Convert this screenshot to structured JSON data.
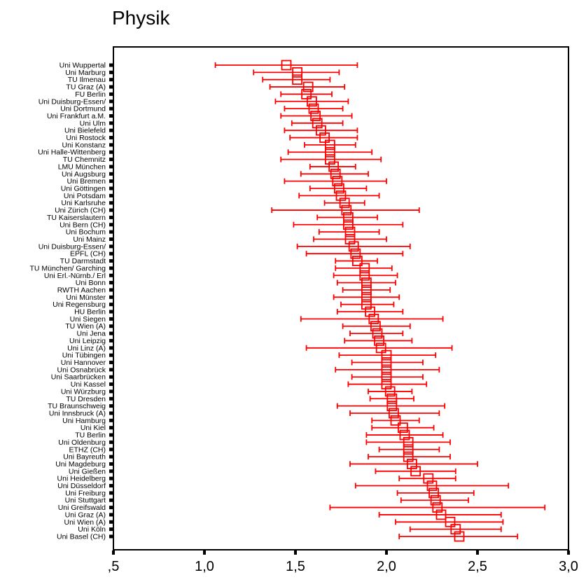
{
  "chart_data": {
    "type": "scatter",
    "title": "Physik",
    "xlabel": "",
    "ylabel": "",
    "xlim": [
      0.5,
      3.0
    ],
    "xticks": [
      ",5",
      "1,0",
      "1,5",
      "2,0",
      "2,5",
      "3,0"
    ],
    "xtick_values": [
      0.5,
      1.0,
      1.5,
      2.0,
      2.5,
      3.0
    ],
    "grid": false,
    "marker_color": "#ff0000",
    "points": [
      {
        "label": "Uni Wuppertal",
        "mean": 1.45,
        "low": 1.06,
        "high": 1.84
      },
      {
        "label": "Uni Marburg",
        "mean": 1.51,
        "low": 1.27,
        "high": 1.74
      },
      {
        "label": "TU Ilmenau",
        "mean": 1.51,
        "low": 1.32,
        "high": 1.69
      },
      {
        "label": "TU Graz (A)",
        "mean": 1.57,
        "low": 1.36,
        "high": 1.77
      },
      {
        "label": "FU Berlin",
        "mean": 1.56,
        "low": 1.42,
        "high": 1.7
      },
      {
        "label": "Uni Duisburg-Essen/",
        "mean": 1.59,
        "low": 1.39,
        "high": 1.79
      },
      {
        "label": "Uni Dortmund",
        "mean": 1.6,
        "low": 1.44,
        "high": 1.76
      },
      {
        "label": "Uni Frankfurt a.M.",
        "mean": 1.61,
        "low": 1.42,
        "high": 1.81
      },
      {
        "label": "Uni Ulm",
        "mean": 1.62,
        "low": 1.48,
        "high": 1.76
      },
      {
        "label": "Uni Bielefeld",
        "mean": 1.64,
        "low": 1.44,
        "high": 1.84
      },
      {
        "label": "Uni Rostock",
        "mean": 1.66,
        "low": 1.47,
        "high": 1.84
      },
      {
        "label": "Uni Konstanz",
        "mean": 1.69,
        "low": 1.55,
        "high": 1.83
      },
      {
        "label": "Uni Halle-Wittenberg",
        "mean": 1.69,
        "low": 1.46,
        "high": 1.92
      },
      {
        "label": "TU Chemnitz",
        "mean": 1.69,
        "low": 1.42,
        "high": 1.97
      },
      {
        "label": "LMU München",
        "mean": 1.71,
        "low": 1.58,
        "high": 1.83
      },
      {
        "label": "Uni Augsburg",
        "mean": 1.72,
        "low": 1.53,
        "high": 1.9
      },
      {
        "label": "Uni Bremen",
        "mean": 1.73,
        "low": 1.44,
        "high": 2.0
      },
      {
        "label": "Uni Göttingen",
        "mean": 1.74,
        "low": 1.58,
        "high": 1.89
      },
      {
        "label": "Uni Potsdam",
        "mean": 1.75,
        "low": 1.52,
        "high": 1.96
      },
      {
        "label": "Uni Karlsruhe",
        "mean": 1.77,
        "low": 1.66,
        "high": 1.88
      },
      {
        "label": "Uni Zürich (CH)",
        "mean": 1.78,
        "low": 1.37,
        "high": 2.18
      },
      {
        "label": "TU Kaiserslautern",
        "mean": 1.79,
        "low": 1.62,
        "high": 1.95
      },
      {
        "label": "Uni Bern (CH)",
        "mean": 1.79,
        "low": 1.49,
        "high": 2.09
      },
      {
        "label": "Uni Bochum",
        "mean": 1.8,
        "low": 1.63,
        "high": 1.96
      },
      {
        "label": "Uni Mainz",
        "mean": 1.8,
        "low": 1.6,
        "high": 2.0
      },
      {
        "label": "Uni Duisburg-Essen/",
        "mean": 1.82,
        "low": 1.51,
        "high": 2.13
      },
      {
        "label": "EPFL (CH)",
        "mean": 1.83,
        "low": 1.56,
        "high": 2.09
      },
      {
        "label": "TU Darmstadt",
        "mean": 1.84,
        "low": 1.72,
        "high": 1.95
      },
      {
        "label": "TU München/ Garching",
        "mean": 1.88,
        "low": 1.72,
        "high": 2.03
      },
      {
        "label": "Uni Erl.-Nürnb./ Erl",
        "mean": 1.88,
        "low": 1.71,
        "high": 2.06
      },
      {
        "label": "Uni Bonn",
        "mean": 1.89,
        "low": 1.73,
        "high": 2.05
      },
      {
        "label": "RWTH Aachen",
        "mean": 1.89,
        "low": 1.76,
        "high": 2.02
      },
      {
        "label": "Uni Münster",
        "mean": 1.89,
        "low": 1.71,
        "high": 2.07
      },
      {
        "label": "Uni Regensburg",
        "mean": 1.89,
        "low": 1.75,
        "high": 2.04
      },
      {
        "label": "HU Berlin",
        "mean": 1.91,
        "low": 1.73,
        "high": 2.09
      },
      {
        "label": "Uni Siegen",
        "mean": 1.93,
        "low": 1.53,
        "high": 2.31
      },
      {
        "label": "TU Wien (A)",
        "mean": 1.94,
        "low": 1.76,
        "high": 2.13
      },
      {
        "label": "Uni Jena",
        "mean": 1.95,
        "low": 1.8,
        "high": 2.09
      },
      {
        "label": "Uni Leipzig",
        "mean": 1.96,
        "low": 1.77,
        "high": 2.14
      },
      {
        "label": "Uni Linz (A)",
        "mean": 1.97,
        "low": 1.56,
        "high": 2.36
      },
      {
        "label": "Uni Tübingen",
        "mean": 2.0,
        "low": 1.74,
        "high": 2.27
      },
      {
        "label": "Uni Hannover",
        "mean": 2.0,
        "low": 1.81,
        "high": 2.2
      },
      {
        "label": "Uni Osnabrück",
        "mean": 2.0,
        "low": 1.72,
        "high": 2.29
      },
      {
        "label": "Uni Saarbrücken",
        "mean": 2.0,
        "low": 1.81,
        "high": 2.2
      },
      {
        "label": "Uni Kassel",
        "mean": 2.0,
        "low": 1.79,
        "high": 2.22
      },
      {
        "label": "Uni Würzburg",
        "mean": 2.02,
        "low": 1.9,
        "high": 2.14
      },
      {
        "label": "TU Dresden",
        "mean": 2.03,
        "low": 1.91,
        "high": 2.15
      },
      {
        "label": "TU Braunschweig",
        "mean": 2.03,
        "low": 1.73,
        "high": 2.32
      },
      {
        "label": "Uni Innsbruck (A)",
        "mean": 2.04,
        "low": 1.8,
        "high": 2.29
      },
      {
        "label": "Uni Hamburg",
        "mean": 2.05,
        "low": 1.92,
        "high": 2.18
      },
      {
        "label": "Uni Kiel",
        "mean": 2.09,
        "low": 1.92,
        "high": 2.26
      },
      {
        "label": "TU Berlin",
        "mean": 2.1,
        "low": 1.89,
        "high": 2.31
      },
      {
        "label": "Uni Oldenburg",
        "mean": 2.12,
        "low": 1.89,
        "high": 2.35
      },
      {
        "label": "ETHZ (CH)",
        "mean": 2.12,
        "low": 1.96,
        "high": 2.29
      },
      {
        "label": "Uni Bayreuth",
        "mean": 2.12,
        "low": 1.9,
        "high": 2.35
      },
      {
        "label": "Uni Magdeburg",
        "mean": 2.14,
        "low": 1.8,
        "high": 2.5
      },
      {
        "label": "Uni Gießen",
        "mean": 2.16,
        "low": 1.94,
        "high": 2.38
      },
      {
        "label": "Uni Heidelberg",
        "mean": 2.23,
        "low": 2.07,
        "high": 2.38
      },
      {
        "label": "Uni Düsseldorf",
        "mean": 2.25,
        "low": 1.83,
        "high": 2.67
      },
      {
        "label": "Uni Freiburg",
        "mean": 2.26,
        "low": 2.06,
        "high": 2.48
      },
      {
        "label": "Uni Stuttgart",
        "mean": 2.27,
        "low": 2.08,
        "high": 2.45
      },
      {
        "label": "Uni Greifswald",
        "mean": 2.28,
        "low": 1.69,
        "high": 2.87
      },
      {
        "label": "Uni Graz (A)",
        "mean": 2.3,
        "low": 1.96,
        "high": 2.63
      },
      {
        "label": "Uni Wien (A)",
        "mean": 2.35,
        "low": 2.05,
        "high": 2.64
      },
      {
        "label": "Uni Köln",
        "mean": 2.38,
        "low": 2.13,
        "high": 2.63
      },
      {
        "label": "Uni Basel (CH)",
        "mean": 2.4,
        "low": 2.07,
        "high": 2.72
      }
    ]
  }
}
